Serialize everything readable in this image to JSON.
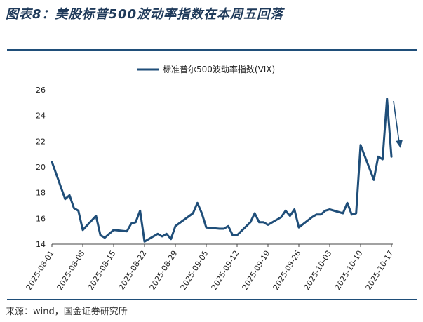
{
  "figure_title": "图表8：美股标普500波动率指数在本周五回落",
  "source": "来源：wind，国金证券研究所",
  "chart_data": {
    "type": "line",
    "title": "",
    "legend_position": "top-center",
    "grid": false,
    "ylim": [
      14,
      26
    ],
    "yticks": [
      "14",
      "16",
      "18",
      "20",
      "22",
      "24",
      "26"
    ],
    "xticks": [
      "2025-08-01",
      "2025-08-08",
      "2025-08-15",
      "2025-08-22",
      "2025-08-29",
      "2025-09-05",
      "2025-09-12",
      "2025-09-19",
      "2025-09-26",
      "2025-10-03",
      "2025-10-10",
      "2025-10-17"
    ],
    "series": [
      {
        "name": "标准普尔500波动率指数(VIX)",
        "color": "#1f4e79",
        "points": [
          [
            "2025-08-01",
            20.4
          ],
          [
            "2025-08-04",
            17.5
          ],
          [
            "2025-08-05",
            17.8
          ],
          [
            "2025-08-06",
            16.8
          ],
          [
            "2025-08-07",
            16.6
          ],
          [
            "2025-08-08",
            15.1
          ],
          [
            "2025-08-11",
            16.2
          ],
          [
            "2025-08-12",
            14.7
          ],
          [
            "2025-08-13",
            14.5
          ],
          [
            "2025-08-14",
            14.8
          ],
          [
            "2025-08-15",
            15.1
          ],
          [
            "2025-08-18",
            15.0
          ],
          [
            "2025-08-19",
            15.6
          ],
          [
            "2025-08-20",
            15.7
          ],
          [
            "2025-08-21",
            16.6
          ],
          [
            "2025-08-22",
            14.2
          ],
          [
            "2025-08-25",
            14.8
          ],
          [
            "2025-08-26",
            14.6
          ],
          [
            "2025-08-27",
            14.8
          ],
          [
            "2025-08-28",
            14.4
          ],
          [
            "2025-08-29",
            15.4
          ],
          [
            "2025-09-02",
            16.4
          ],
          [
            "2025-09-03",
            17.2
          ],
          [
            "2025-09-04",
            16.4
          ],
          [
            "2025-09-05",
            15.3
          ],
          [
            "2025-09-08",
            15.2
          ],
          [
            "2025-09-09",
            15.2
          ],
          [
            "2025-09-10",
            15.4
          ],
          [
            "2025-09-11",
            14.7
          ],
          [
            "2025-09-12",
            14.7
          ],
          [
            "2025-09-15",
            15.7
          ],
          [
            "2025-09-16",
            16.4
          ],
          [
            "2025-09-17",
            15.7
          ],
          [
            "2025-09-18",
            15.7
          ],
          [
            "2025-09-19",
            15.5
          ],
          [
            "2025-09-22",
            16.1
          ],
          [
            "2025-09-23",
            16.6
          ],
          [
            "2025-09-24",
            16.2
          ],
          [
            "2025-09-25",
            16.7
          ],
          [
            "2025-09-26",
            15.3
          ],
          [
            "2025-09-29",
            16.1
          ],
          [
            "2025-09-30",
            16.3
          ],
          [
            "2025-10-01",
            16.3
          ],
          [
            "2025-10-02",
            16.6
          ],
          [
            "2025-10-03",
            16.7
          ],
          [
            "2025-10-06",
            16.4
          ],
          [
            "2025-10-07",
            17.2
          ],
          [
            "2025-10-08",
            16.3
          ],
          [
            "2025-10-09",
            16.4
          ],
          [
            "2025-10-10",
            21.7
          ],
          [
            "2025-10-13",
            19.0
          ],
          [
            "2025-10-14",
            20.8
          ],
          [
            "2025-10-15",
            20.6
          ],
          [
            "2025-10-16",
            25.3
          ],
          [
            "2025-10-17",
            20.8
          ]
        ]
      }
    ]
  }
}
